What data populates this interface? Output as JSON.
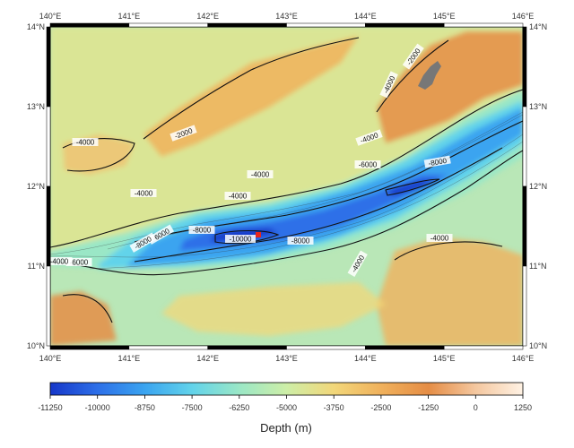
{
  "map": {
    "top_lon_labels": [
      "140°E",
      "141°E",
      "142°E",
      "143°E",
      "144°E",
      "145°E",
      "146°E"
    ],
    "bottom_lon_labels": [
      "140°E",
      "141°E",
      "142°E",
      "143°E",
      "144°E",
      "145°E",
      "146°E"
    ],
    "left_lat_labels": [
      "14°N",
      "13°N",
      "12°N",
      "11°N",
      "10°N"
    ],
    "right_lat_labels": [
      "14°N",
      "13°N",
      "12°N",
      "11°N",
      "10°N"
    ],
    "contour_labels": [
      "-2000",
      "-2000",
      "-4000",
      "-4000",
      "-4000",
      "-4000",
      "-4000",
      "-4000",
      "-6000",
      "-6000",
      "-6000",
      "-8000",
      "-8000",
      "-8000",
      "-8000",
      "-10000",
      "-4000",
      "-4000",
      "-4000"
    ],
    "deepest_point_marker_color": "#e8251d",
    "land_color": "#777777"
  },
  "colorbar": {
    "ticks": [
      "-11250",
      "-10000",
      "-8750",
      "-7500",
      "-6250",
      "-5000",
      "-3750",
      "-2500",
      "-1250",
      "0",
      "1250"
    ],
    "title": "Depth (m)",
    "colors": [
      "#1637c9",
      "#2d6fe8",
      "#3aa4f0",
      "#62d3ea",
      "#9ae7c6",
      "#cdeea7",
      "#f2d77a",
      "#f0b15c",
      "#e58d45",
      "#f4c79f",
      "#fff2e4"
    ]
  }
}
